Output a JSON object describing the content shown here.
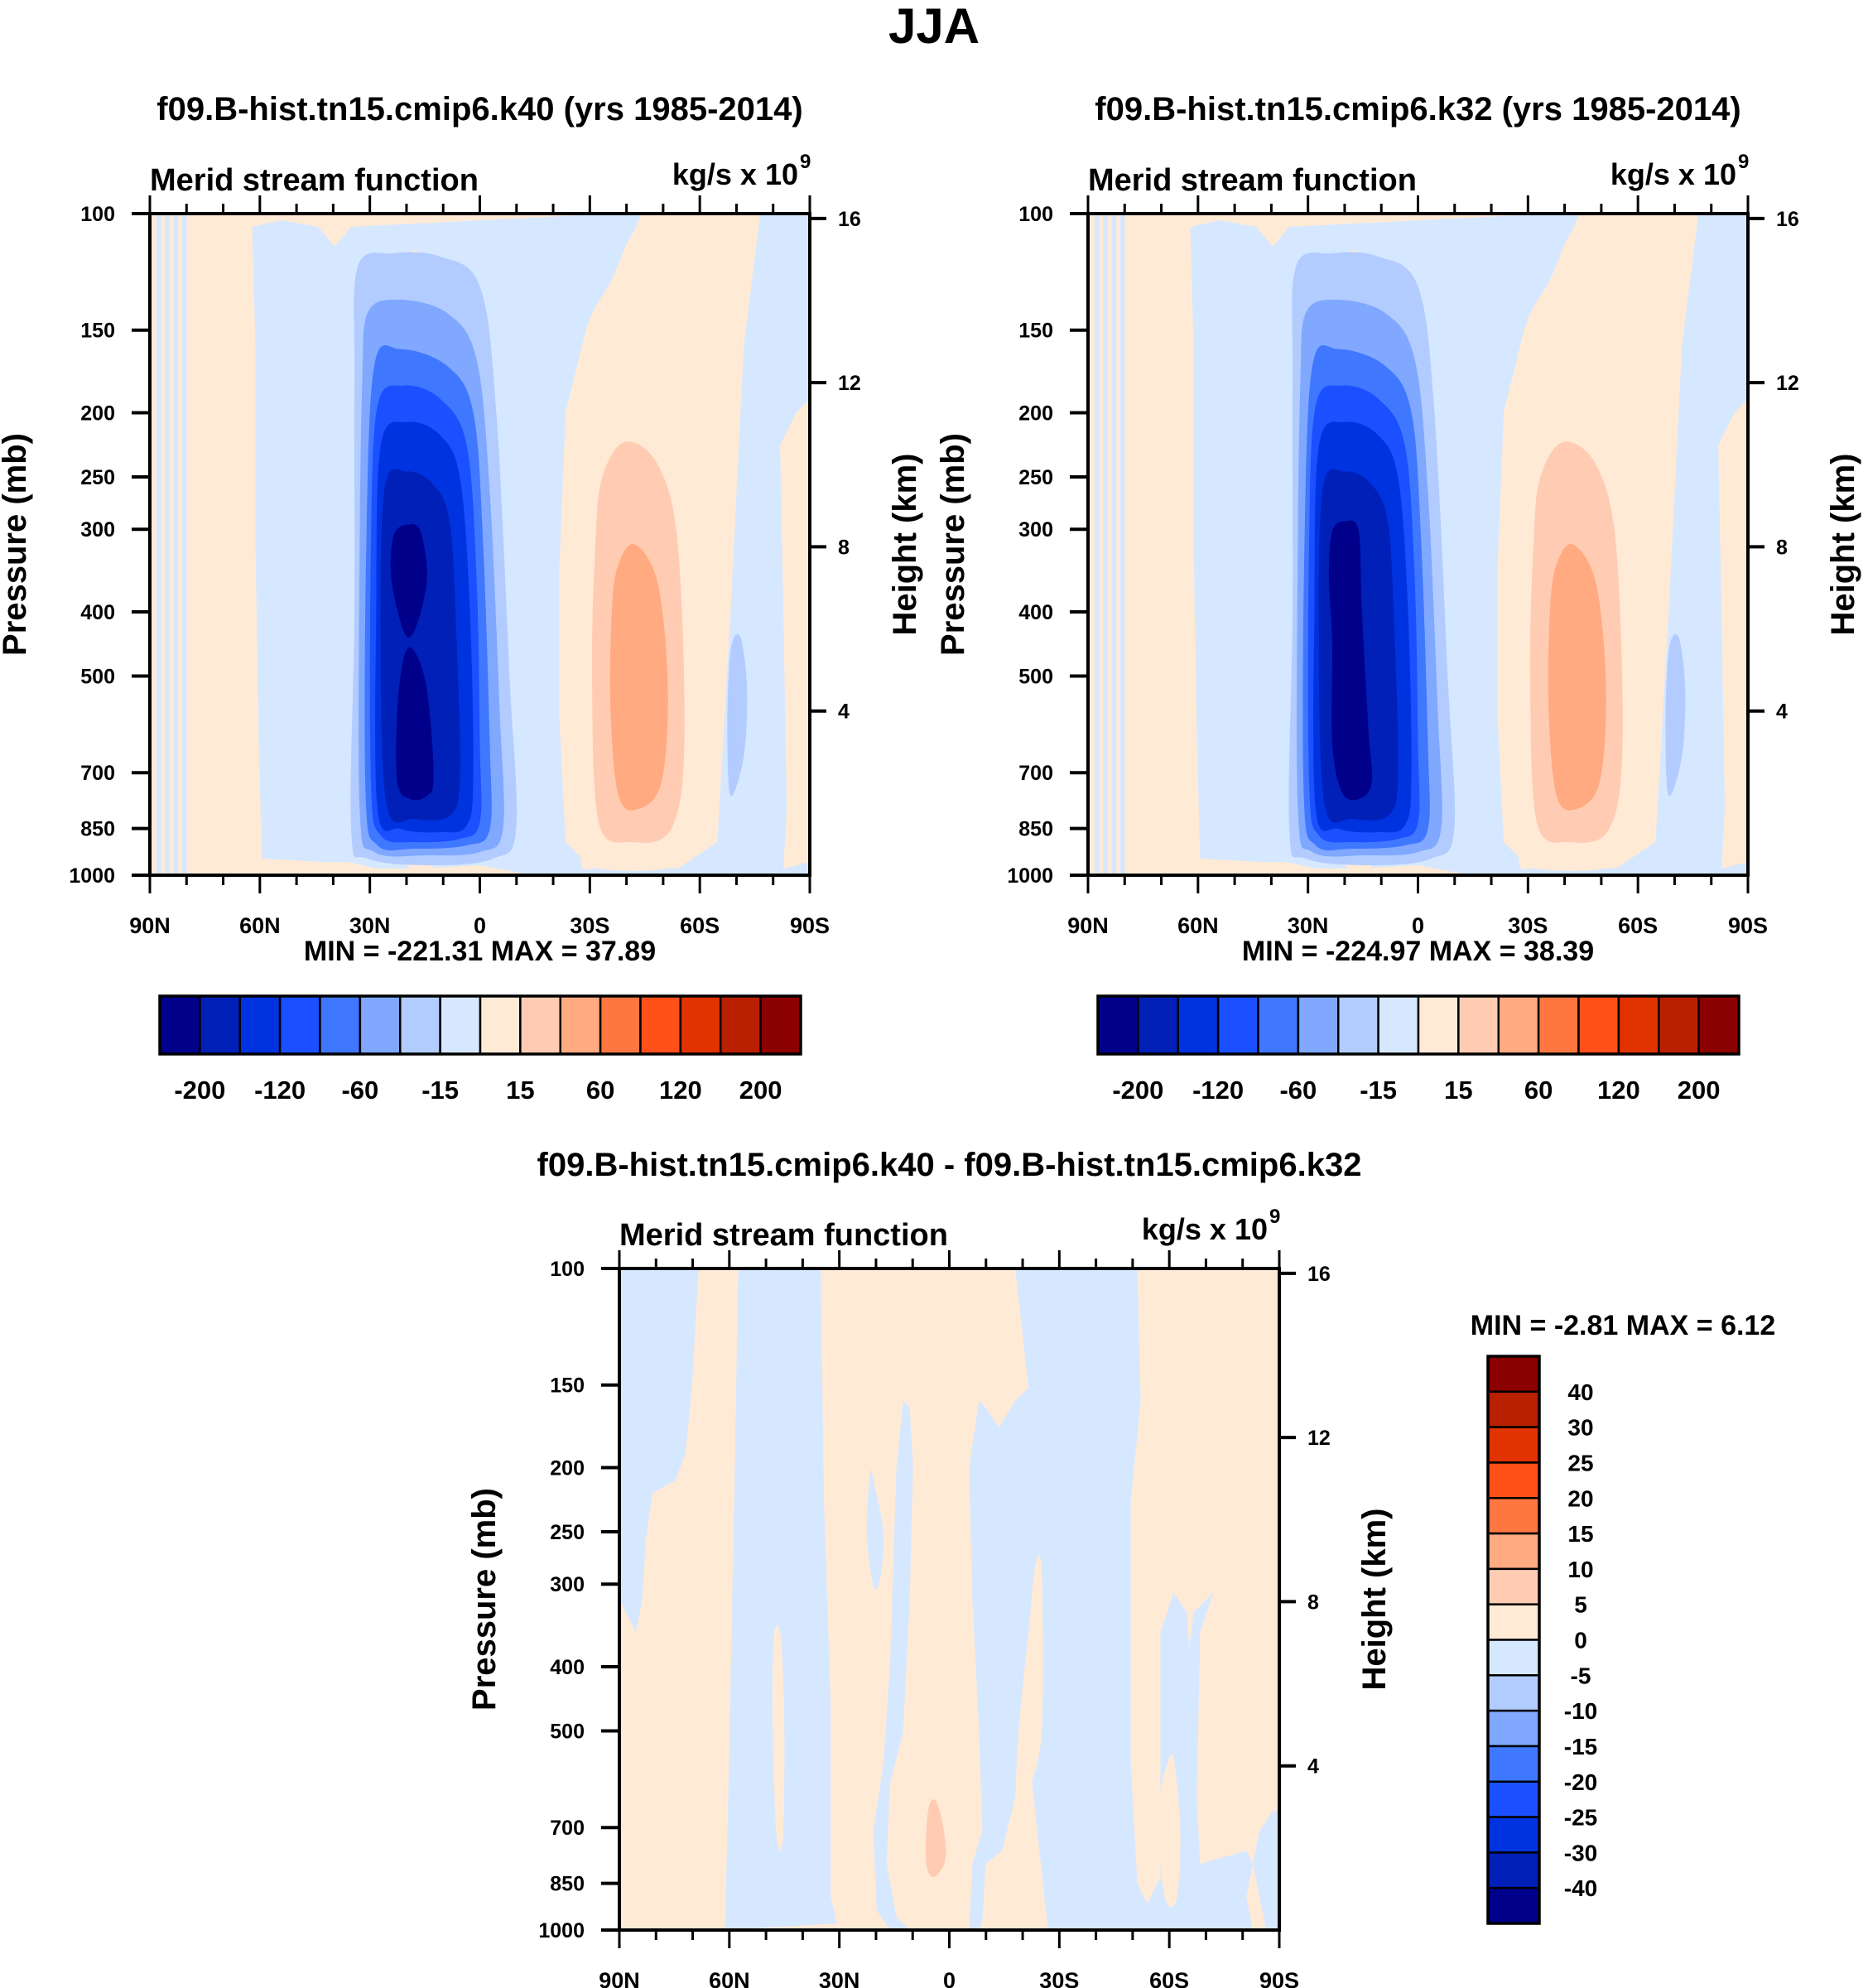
{
  "page_title": "JJA",
  "chart_data": [
    {
      "id": "panel-k40",
      "type": "heatmap",
      "subtype": "filled-contour latitude-pressure cross-section",
      "title": "f09.B-hist.tn15.cmip6.k40 (yrs 1985-2014)",
      "left_string": "Merid stream function",
      "right_string": "kg/s x 10",
      "right_string_superscript": "9",
      "xlabel": "",
      "ylabel": "Pressure (mb)",
      "ylabel_right": "Height (km)",
      "x_ticks": [
        "90N",
        "60N",
        "30N",
        "0",
        "30S",
        "60S",
        "90S"
      ],
      "x_range": [
        90,
        -90
      ],
      "y_ticks": [
        100,
        150,
        200,
        250,
        300,
        400,
        500,
        700,
        850,
        1000
      ],
      "y_range": [
        100,
        1000
      ],
      "y_scale": "log",
      "y_right_ticks": [
        16,
        12,
        8,
        4
      ],
      "stats": "MIN = -221.31  MAX =  37.89",
      "min": -221.31,
      "max": 37.89,
      "colorbar": {
        "orientation": "horizontal",
        "labels": [
          "-200",
          "-120",
          "-60",
          "-15",
          "15",
          "60",
          "120",
          "200"
        ],
        "colors": [
          "#00008b",
          "#0020b8",
          "#0033e0",
          "#1a50ff",
          "#4077ff",
          "#80a8ff",
          "#b3ccff",
          "#d6e8ff",
          "#ffead6",
          "#ffccb3",
          "#ffaa80",
          "#ff7740",
          "#ff501a",
          "#e03300",
          "#b82000",
          "#8b0000"
        ]
      }
    },
    {
      "id": "panel-k32",
      "type": "heatmap",
      "subtype": "filled-contour latitude-pressure cross-section",
      "title": "f09.B-hist.tn15.cmip6.k32 (yrs 1985-2014)",
      "left_string": "Merid stream function",
      "right_string": "kg/s x 10",
      "right_string_superscript": "9",
      "xlabel": "",
      "ylabel": "Pressure (mb)",
      "ylabel_right": "Height (km)",
      "x_ticks": [
        "90N",
        "60N",
        "30N",
        "0",
        "30S",
        "60S",
        "90S"
      ],
      "x_range": [
        90,
        -90
      ],
      "y_ticks": [
        100,
        150,
        200,
        250,
        300,
        400,
        500,
        700,
        850,
        1000
      ],
      "y_range": [
        100,
        1000
      ],
      "y_scale": "log",
      "y_right_ticks": [
        16,
        12,
        8,
        4
      ],
      "stats": "MIN = -224.97  MAX =  38.39",
      "min": -224.97,
      "max": 38.39,
      "colorbar": {
        "orientation": "horizontal",
        "labels": [
          "-200",
          "-120",
          "-60",
          "-15",
          "15",
          "60",
          "120",
          "200"
        ],
        "colors": [
          "#00008b",
          "#0020b8",
          "#0033e0",
          "#1a50ff",
          "#4077ff",
          "#80a8ff",
          "#b3ccff",
          "#d6e8ff",
          "#ffead6",
          "#ffccb3",
          "#ffaa80",
          "#ff7740",
          "#ff501a",
          "#e03300",
          "#b82000",
          "#8b0000"
        ]
      }
    },
    {
      "id": "panel-diff",
      "type": "heatmap",
      "subtype": "filled-contour latitude-pressure cross-section",
      "title": "f09.B-hist.tn15.cmip6.k40 - f09.B-hist.tn15.cmip6.k32",
      "left_string": "Merid stream function",
      "right_string": "kg/s x 10",
      "right_string_superscript": "9",
      "xlabel": "",
      "ylabel": "Pressure (mb)",
      "ylabel_right": "Height (km)",
      "x_ticks": [
        "90N",
        "60N",
        "30N",
        "0",
        "30S",
        "60S",
        "90S"
      ],
      "x_range": [
        90,
        -90
      ],
      "y_ticks": [
        100,
        150,
        200,
        250,
        300,
        400,
        500,
        700,
        850,
        1000
      ],
      "y_range": [
        100,
        1000
      ],
      "y_scale": "log",
      "y_right_ticks": [
        16,
        12,
        8,
        4
      ],
      "stats": "MIN =  -2.81  MAX =   6.12",
      "min": -2.81,
      "max": 6.12,
      "colorbar": {
        "orientation": "vertical",
        "labels": [
          "40",
          "30",
          "25",
          "20",
          "15",
          "10",
          "5",
          "0",
          "-5",
          "-10",
          "-15",
          "-20",
          "-25",
          "-30",
          "-40"
        ],
        "colors": [
          "#8b0000",
          "#b82000",
          "#e03300",
          "#ff501a",
          "#ff7740",
          "#ffaa80",
          "#ffccb3",
          "#ffead6",
          "#d6e8ff",
          "#b3ccff",
          "#80a8ff",
          "#4077ff",
          "#1a50ff",
          "#0033e0",
          "#0020b8",
          "#00008b"
        ]
      }
    }
  ]
}
